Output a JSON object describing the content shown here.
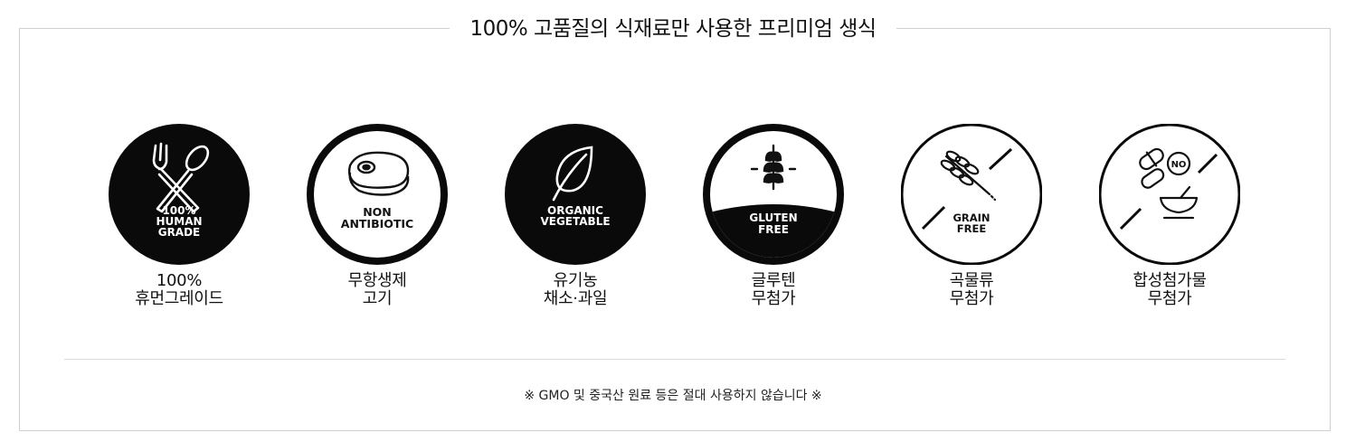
{
  "header": {
    "title": "100% 고품질의 식재료만 사용한 프리미엄 생식"
  },
  "features": [
    {
      "badge_lines": [
        "100%",
        "HUMAN",
        "GRADE"
      ],
      "caption": [
        "100%",
        "휴먼그레이드"
      ],
      "icon": "fork-spoon-icon"
    },
    {
      "badge_lines": [
        "NON",
        "ANTIBIOTIC"
      ],
      "caption": [
        "무항생제",
        "고기"
      ],
      "icon": "steak-icon"
    },
    {
      "badge_lines": [
        "ORGANIC",
        "VEGETABLE"
      ],
      "caption": [
        "유기농",
        "채소·과일"
      ],
      "icon": "leaf-icon"
    },
    {
      "badge_lines": [
        "GLUTEN",
        "FREE"
      ],
      "caption": [
        "글루텐",
        "무첨가"
      ],
      "icon": "wheat-icon"
    },
    {
      "badge_lines": [
        "GRAIN",
        "FREE"
      ],
      "caption": [
        "곡물류",
        "무첨가"
      ],
      "icon": "grain-icon"
    },
    {
      "badge_lines": [
        "NO"
      ],
      "caption": [
        "합성첨가물",
        "무첨가"
      ],
      "icon": "pill-bowl-icon"
    }
  ],
  "footer": {
    "notice": "※ GMO 및 중국산 원료 등은 절대 사용하지 않습니다 ※"
  }
}
